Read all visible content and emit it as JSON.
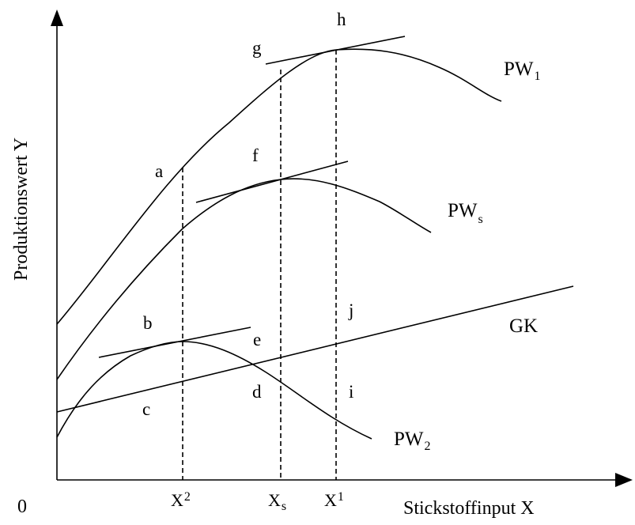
{
  "axes": {
    "y_label": "Produktionswert Y",
    "x_label": "Stickstoffinput X",
    "origin_label": "0"
  },
  "ticks": {
    "x2": {
      "base": "X",
      "sub": "2"
    },
    "xs": {
      "base": "X",
      "sub": "s"
    },
    "x1": {
      "base": "X",
      "sub": "1"
    }
  },
  "curves": {
    "pw1": {
      "base": "PW",
      "sub": "1"
    },
    "pws": {
      "base": "PW",
      "sub": "s"
    },
    "pw2": {
      "base": "PW",
      "sub": "2"
    },
    "gk": "GK"
  },
  "points": {
    "a": "a",
    "b": "b",
    "c": "c",
    "d": "d",
    "e": "e",
    "f": "f",
    "g": "g",
    "h": "h",
    "i": "i",
    "j": "j"
  }
}
